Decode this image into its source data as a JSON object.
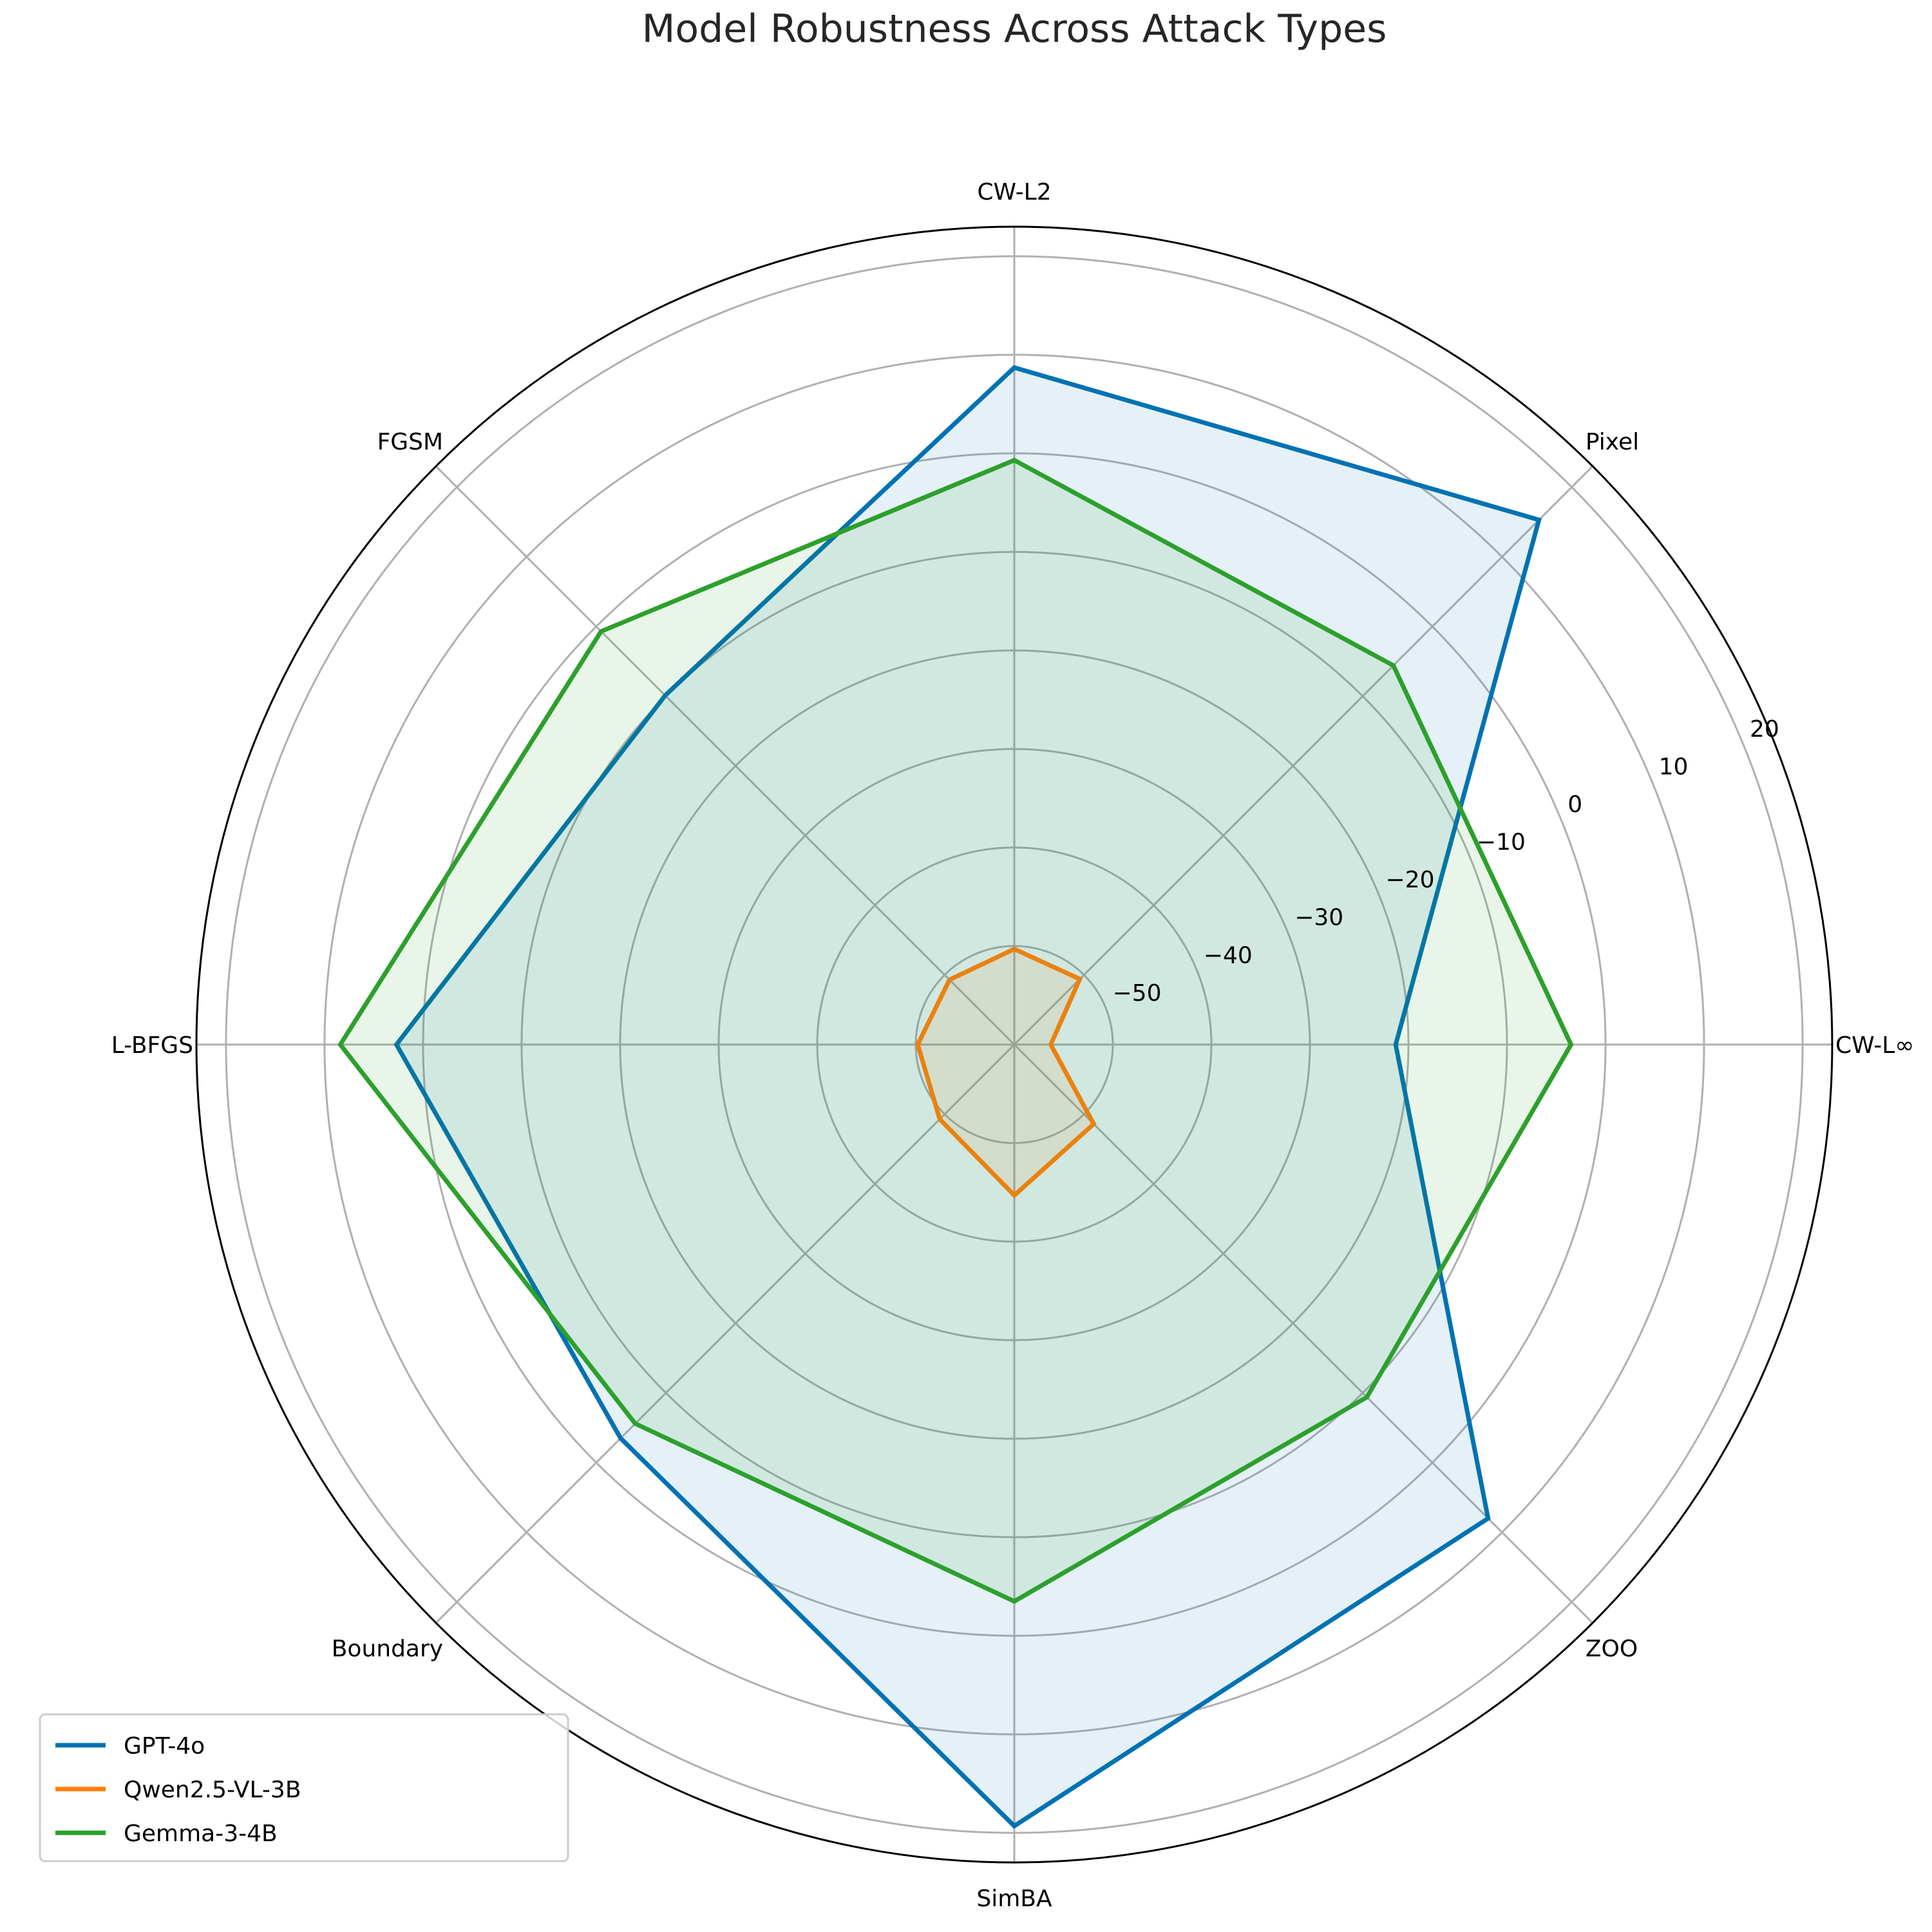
{
  "chart_data": {
    "type": "radar",
    "title": "Model Robustness Across Attack Types",
    "categories": [
      "CW-L∞",
      "Pixel",
      "CW-L2",
      "FGSM",
      "L-BFGS",
      "Boundary",
      "SimBA",
      "ZOO"
    ],
    "r_ticks": [
      -50,
      -40,
      -30,
      -20,
      -10,
      0,
      10,
      20
    ],
    "r_tick_labels": [
      "−50",
      "−40",
      "−30",
      "−20",
      "−10",
      "0",
      "10",
      "20"
    ],
    "rlim": [
      -60,
      23
    ],
    "grid": true,
    "legend_position": "lower-left",
    "series": [
      {
        "name": "GPT-4o",
        "color": "#0072b2",
        "values": [
          -21.3,
          15.3,
          8.7,
          -9.9,
          2.7,
          -3.5,
          19.3,
          8.0
        ]
      },
      {
        "name": "Qwen2.5-VL-3B",
        "color": "#ff7f0e",
        "values": [
          -56.3,
          -50.6,
          -50.3,
          -50.7,
          -50.2,
          -49.3,
          -44.7,
          -48.6
        ]
      },
      {
        "name": "Gemma-3-4B",
        "color": "#2ca02c",
        "values": [
          -3.5,
          -5.6,
          -0.7,
          -0.7,
          8.4,
          -5.6,
          -3.5,
          -9.4
        ]
      }
    ]
  }
}
